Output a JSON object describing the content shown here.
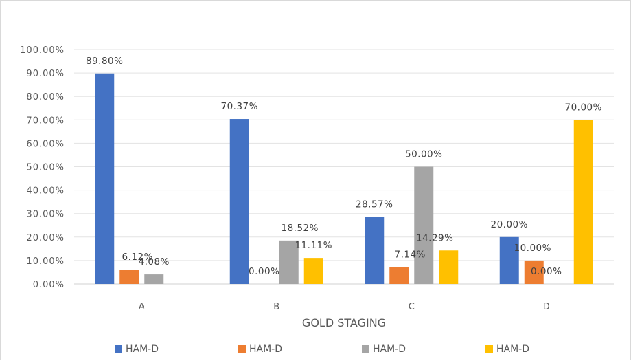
{
  "chart_data": {
    "type": "bar",
    "title": "",
    "xlabel": "GOLD STAGING",
    "ylabel": "",
    "ylim": [
      0,
      100
    ],
    "yticks": [
      "0.00%",
      "10.00%",
      "20.00%",
      "30.00%",
      "40.00%",
      "50.00%",
      "60.00%",
      "70.00%",
      "80.00%",
      "90.00%",
      "100.00%"
    ],
    "categories": [
      "A",
      "B",
      "C",
      "D"
    ],
    "grid": true,
    "legend_position": "bottom",
    "series": [
      {
        "name": "HAM-D",
        "color": "#4472C4",
        "values": [
          89.8,
          70.37,
          28.57,
          20.0
        ],
        "labels": [
          "89.80%",
          "70.37%",
          "28.57%",
          "20.00%"
        ]
      },
      {
        "name": "HAM-D",
        "color": "#ED7D31",
        "values": [
          6.12,
          0.0,
          7.14,
          10.0
        ],
        "labels": [
          "6.12%",
          "0.00%",
          "7.14%",
          "10.00%"
        ]
      },
      {
        "name": "HAM-D",
        "color": "#A5A5A5",
        "values": [
          4.08,
          18.52,
          50.0,
          0.0
        ],
        "labels": [
          "4.08%",
          "18.52%",
          "50.00%",
          "0.00%"
        ]
      },
      {
        "name": "HAM-D",
        "color": "#FFC000",
        "values": [
          null,
          11.11,
          14.29,
          70.0
        ],
        "labels": [
          null,
          "11.11%",
          "14.29%",
          "70.00%"
        ]
      }
    ]
  }
}
